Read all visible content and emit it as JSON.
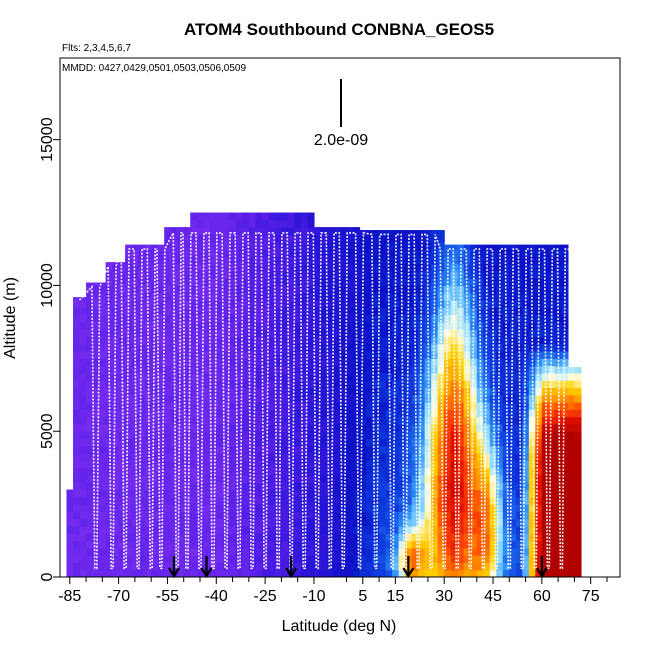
{
  "chart_data": {
    "type": "heatmap",
    "title": "ATOM4 Southbound CONBNA_GEOS5",
    "flights_label": "Flts: 2,3,4,5,6,7",
    "dates_label": "MMDD: 0427,0429,0501,0503,0506,0509",
    "scale_label": "2.0e-09",
    "xlabel": "Latitude (deg N)",
    "ylabel": "Altitude (m)",
    "xlim": [
      -88,
      84
    ],
    "ylim": [
      0,
      17800
    ],
    "x_ticks": [
      -85,
      -70,
      -55,
      -40,
      -25,
      -10,
      5,
      15,
      30,
      45,
      60,
      75
    ],
    "x_minor_ticks": [
      -80,
      -75,
      -65,
      -60,
      -50,
      -45,
      -35,
      -30,
      -20,
      -15,
      0,
      10,
      20,
      25,
      35,
      40,
      50,
      55,
      65,
      70,
      80
    ],
    "y_ticks": [
      0,
      5000,
      10000,
      15000
    ],
    "profile_markers_lat": [
      -53,
      -43,
      -17,
      19,
      60
    ],
    "curtain_top": [
      {
        "lat_start": -86,
        "lat_end": -84,
        "alt": 3000
      },
      {
        "lat_start": -84,
        "lat_end": -80,
        "alt": 9600
      },
      {
        "lat_start": -80,
        "lat_end": -74,
        "alt": 10100
      },
      {
        "lat_start": -74,
        "lat_end": -68,
        "alt": 10800
      },
      {
        "lat_start": -68,
        "lat_end": -55,
        "alt": 11400
      },
      {
        "lat_start": -55,
        "lat_end": -48,
        "alt": 12000
      },
      {
        "lat_start": -48,
        "lat_end": -10,
        "alt": 12500
      },
      {
        "lat_start": -10,
        "lat_end": 5,
        "alt": 12000
      },
      {
        "lat_start": 5,
        "lat_end": 30,
        "alt": 11900
      },
      {
        "lat_start": 30,
        "lat_end": 68,
        "alt": 11400
      },
      {
        "lat_start": 68,
        "lat_end": 72,
        "alt": 7200
      }
    ],
    "colorscale": [
      "#7b2ff0",
      "#5a1fe8",
      "#2a15d8",
      "#0a10c4",
      "#0f3fe0",
      "#2a8cf5",
      "#8fdcff",
      "#fffde0",
      "#ffd000",
      "#ff9a00",
      "#ff4800",
      "#e01000",
      "#b00000"
    ],
    "white_trace_color": "#ffffff"
  }
}
